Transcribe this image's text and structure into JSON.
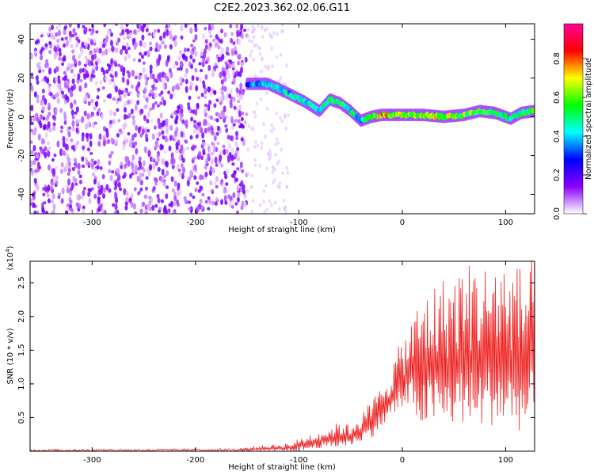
{
  "figure": {
    "title": "C2E2.2023.362.02.06.G11"
  },
  "chart_data": [
    {
      "type": "heatmap",
      "xlabel": "Height of straight line (km)",
      "ylabel": "Frequency (Hz)",
      "xlim": [
        -360,
        128
      ],
      "ylim": [
        -50,
        48
      ],
      "xticks": [
        -300,
        -200,
        -100,
        0,
        100
      ],
      "yticks": [
        -40,
        -20,
        0,
        20,
        40
      ],
      "colorbar": {
        "label": "Normalized spectral amplitude",
        "range": [
          0.0,
          0.98
        ],
        "ticks": [
          "0.0",
          "0.2",
          "0.4",
          "0.6",
          "0.8"
        ],
        "tick_values": [
          0.0,
          0.2,
          0.4,
          0.6,
          0.8
        ],
        "colormap": [
          "#ffffff",
          "#8a00ff",
          "#0000ff",
          "#00ffff",
          "#00ff00",
          "#ffff00",
          "#ff0000",
          "#ff0099"
        ]
      },
      "noise_region": {
        "x": [
          -360,
          -150
        ],
        "y": [
          -50,
          48
        ],
        "typical_amplitude": 0.1
      },
      "ridge": {
        "x": [
          -150,
          -130,
          -110,
          -95,
          -80,
          -70,
          -60,
          -50,
          -40,
          -30,
          -20,
          -10,
          0,
          20,
          40,
          60,
          75,
          90,
          105,
          115,
          128
        ],
        "frequency": [
          17,
          17,
          12,
          8,
          3,
          9,
          7,
          3,
          -2,
          0,
          1,
          1,
          1,
          1,
          0,
          1,
          3,
          2,
          -1,
          2,
          3
        ],
        "amplitude": [
          0.35,
          0.45,
          0.45,
          0.5,
          0.45,
          0.55,
          0.55,
          0.5,
          0.45,
          0.6,
          0.8,
          0.75,
          0.7,
          0.75,
          0.7,
          0.65,
          0.6,
          0.55,
          0.5,
          0.55,
          0.6
        ]
      }
    },
    {
      "type": "line",
      "xlabel": "Height of straight line (km)",
      "ylabel": "SNR (10 * v/v)",
      "multiplier": "(x10",
      "multiplier_exp": "4",
      "multiplier_close": ")",
      "xlim": [
        -360,
        128
      ],
      "ylim": [
        0,
        2.82
      ],
      "xticks": [
        -300,
        -200,
        -100,
        0,
        100
      ],
      "yticks": [
        0.5,
        1.0,
        1.5,
        2.0,
        2.5
      ],
      "color": "#ee2222",
      "envelope": {
        "x": [
          -360,
          -160,
          -150,
          -140,
          -125,
          -110,
          -100,
          -90,
          -80,
          -70,
          -60,
          -50,
          -40,
          -30,
          -20,
          -10,
          0,
          10,
          20,
          30,
          40,
          50,
          60,
          70,
          80,
          90,
          100,
          110,
          120,
          128
        ],
        "low": [
          0.0,
          0.0,
          0.0,
          0.0,
          0.0,
          0.0,
          0.01,
          0.02,
          0.05,
          0.05,
          0.06,
          0.08,
          0.15,
          0.2,
          0.35,
          0.5,
          0.6,
          0.6,
          0.3,
          0.4,
          0.3,
          0.35,
          0.4,
          0.3,
          0.35,
          0.4,
          0.3,
          0.35,
          0.2,
          0.4
        ],
        "high": [
          0.03,
          0.04,
          0.06,
          0.08,
          0.1,
          0.12,
          0.18,
          0.25,
          0.3,
          0.35,
          0.45,
          0.4,
          0.55,
          0.75,
          1.0,
          1.3,
          1.7,
          2.0,
          2.4,
          2.5,
          2.6,
          2.7,
          2.8,
          2.85,
          2.8,
          2.85,
          2.9,
          2.75,
          2.85,
          2.9
        ]
      }
    }
  ]
}
